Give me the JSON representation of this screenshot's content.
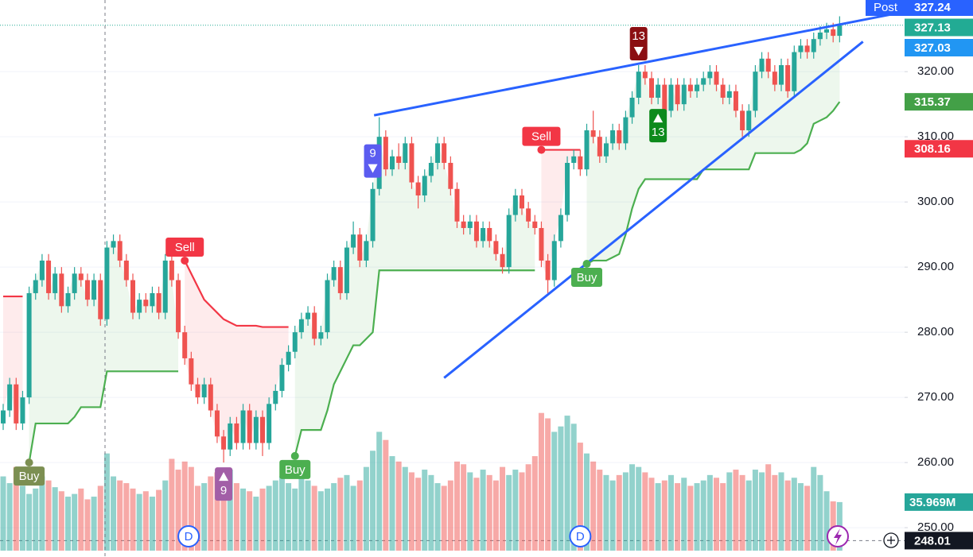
{
  "chart_data": {
    "type": "candlestick",
    "ylim": [
      245.5,
      331
    ],
    "yticks": [
      {
        "value": 250,
        "label": "250.00"
      },
      {
        "value": 260,
        "label": "260.00"
      },
      {
        "value": 270,
        "label": "270.00"
      },
      {
        "value": 280,
        "label": "280.00"
      },
      {
        "value": 290,
        "label": "290.00"
      },
      {
        "value": 300,
        "label": "300.00"
      },
      {
        "value": 310,
        "label": "310.00"
      },
      {
        "value": 320,
        "label": "320.00"
      }
    ],
    "grid": true,
    "up_color": "#26a69a",
    "down_color": "#ef5350",
    "open": [
      266,
      268,
      272,
      266,
      270,
      286,
      288,
      291,
      286,
      289,
      284,
      286,
      289,
      288,
      285,
      288,
      282,
      293,
      294,
      291,
      288,
      283,
      285,
      284,
      286,
      283,
      291,
      288,
      280,
      276,
      272,
      270,
      272,
      268,
      264,
      262,
      266,
      263,
      268,
      263,
      267,
      263,
      269,
      271,
      275,
      277,
      280,
      282,
      283,
      279,
      280,
      288,
      290,
      286,
      293,
      295,
      291,
      294,
      302,
      310,
      305,
      307,
      306,
      309,
      303,
      301,
      304,
      306,
      309,
      306,
      302,
      297,
      296,
      297,
      294,
      296,
      294,
      292,
      290,
      298,
      301,
      299,
      297,
      296,
      291,
      288,
      294,
      298,
      306,
      307,
      305,
      311,
      310,
      307,
      309,
      311,
      309,
      313,
      316,
      320,
      319,
      316,
      318,
      314,
      318,
      315,
      318,
      317,
      318,
      319,
      320,
      318,
      316,
      317,
      314,
      311,
      314,
      320,
      322,
      320,
      318,
      321,
      317,
      323,
      324,
      323,
      325,
      326,
      326.5,
      325.5
    ],
    "high": [
      269,
      273,
      273,
      271,
      287,
      289,
      292,
      292,
      290,
      290,
      287,
      290,
      290,
      289,
      289,
      289,
      294,
      295,
      295,
      292,
      289,
      286,
      286,
      287,
      287,
      292,
      292,
      289,
      281,
      277,
      273,
      273,
      273,
      269,
      265,
      267,
      267,
      269,
      269,
      268,
      268,
      270,
      272,
      276,
      278,
      281,
      283,
      284,
      284,
      281,
      289,
      291,
      291,
      294,
      297,
      296,
      295,
      303,
      313,
      311,
      308,
      309,
      310,
      310,
      304,
      305,
      307,
      310,
      310,
      307,
      303,
      298,
      298,
      298,
      297,
      297,
      295,
      293,
      299,
      302,
      302,
      300,
      298,
      297,
      292,
      295,
      299,
      307,
      308,
      308,
      312,
      314,
      311,
      310,
      312,
      312,
      314,
      317,
      321,
      321,
      320,
      319,
      319,
      319,
      319,
      319,
      319,
      319,
      320,
      321,
      321,
      319,
      318,
      318,
      315,
      315,
      321,
      323,
      323,
      321,
      322,
      322,
      324,
      325,
      325,
      326,
      327,
      327.5,
      327.5,
      328.5
    ],
    "low": [
      265,
      267,
      265,
      265,
      269,
      285,
      287,
      285,
      285,
      283,
      283,
      285,
      287,
      284,
      284,
      281,
      281,
      292,
      290,
      287,
      282,
      282,
      283,
      283,
      282,
      282,
      287,
      279,
      275,
      271,
      269,
      269,
      267,
      263,
      260,
      261,
      262,
      262,
      262,
      262,
      261,
      262,
      268,
      270,
      274,
      276,
      279,
      281,
      278,
      278,
      279,
      287,
      285,
      285,
      292,
      290,
      290,
      293,
      301,
      304,
      304,
      305,
      305,
      302,
      299,
      300,
      303,
      305,
      305,
      301,
      296,
      295,
      295,
      293,
      293,
      293,
      291,
      289,
      289,
      297,
      298,
      296,
      295,
      290,
      286,
      287,
      293,
      297,
      305,
      304,
      304,
      309,
      306,
      306,
      308,
      308,
      308,
      312,
      315,
      318,
      315,
      315,
      313,
      313,
      314,
      314,
      316,
      316,
      317,
      318,
      317,
      315,
      315,
      313,
      310,
      310,
      313,
      319,
      319,
      317,
      317,
      316,
      316,
      322,
      322,
      322,
      324,
      325,
      324.5,
      324.5
    ],
    "close": [
      268,
      272,
      266,
      270,
      286,
      288,
      291,
      286,
      289,
      284,
      286,
      289,
      288,
      285,
      288,
      282,
      293,
      294,
      291,
      288,
      283,
      285,
      284,
      286,
      283,
      291,
      288,
      280,
      276,
      272,
      270,
      272,
      268,
      264,
      262,
      266,
      263,
      268,
      263,
      267,
      263,
      269,
      271,
      275,
      277,
      280,
      282,
      283,
      279,
      280,
      288,
      290,
      286,
      293,
      295,
      291,
      294,
      302,
      310,
      305,
      307,
      306,
      309,
      303,
      301,
      304,
      306,
      309,
      306,
      302,
      297,
      296,
      297,
      294,
      296,
      294,
      292,
      290,
      298,
      301,
      299,
      297,
      296,
      291,
      288,
      294,
      298,
      306,
      307,
      305,
      311,
      310,
      307,
      309,
      311,
      309,
      313,
      316,
      320,
      319,
      316,
      318,
      314,
      318,
      315,
      318,
      317,
      318,
      319,
      320,
      318,
      316,
      317,
      314,
      311,
      314,
      320,
      322,
      320,
      318,
      321,
      317,
      323,
      324,
      323,
      325,
      326,
      326.5,
      325.5,
      327.13
    ],
    "volume_ylim": [
      0,
      103
    ],
    "volume": [
      55,
      50,
      62,
      48,
      42,
      46,
      55,
      52,
      47,
      44,
      40,
      42,
      46,
      38,
      40,
      48,
      72,
      55,
      52,
      50,
      46,
      42,
      44,
      40,
      45,
      52,
      68,
      60,
      66,
      62,
      48,
      50,
      55,
      58,
      56,
      60,
      50,
      46,
      44,
      40,
      46,
      48,
      52,
      55,
      50,
      46,
      58,
      52,
      48,
      44,
      46,
      50,
      54,
      56,
      48,
      52,
      62,
      74,
      88,
      82,
      70,
      66,
      62,
      58,
      54,
      60,
      56,
      50,
      48,
      52,
      66,
      64,
      58,
      54,
      60,
      56,
      52,
      62,
      56,
      60,
      58,
      64,
      70,
      102,
      98,
      88,
      92,
      100,
      94,
      80,
      72,
      66,
      60,
      56,
      52,
      56,
      58,
      64,
      62,
      58,
      54,
      50,
      52,
      56,
      50,
      54,
      48,
      50,
      52,
      56,
      54,
      50,
      58,
      60,
      56,
      52,
      60,
      58,
      64,
      56,
      58,
      52,
      54,
      50,
      48,
      62,
      56,
      44,
      36.5,
      35.969
    ],
    "volume_tag": {
      "label": "35.969M",
      "value": 35.969,
      "color": "#26a69a"
    },
    "supertrend_down": [
      285.5,
      285.5,
      285.5,
      285.5,
      null,
      null,
      null,
      null,
      null,
      null,
      null,
      null,
      null,
      null,
      null,
      null,
      null,
      null,
      null,
      null,
      null,
      null,
      null,
      null,
      null,
      null,
      null,
      null,
      291,
      289,
      287,
      285,
      284,
      283,
      282,
      281.5,
      281,
      281,
      281,
      281,
      280.8,
      280.8,
      280.8,
      280.8,
      280.8,
      null,
      null,
      null,
      null,
      null,
      null,
      null,
      null,
      null,
      null,
      null,
      null,
      null,
      null,
      null,
      null,
      null,
      null,
      null,
      null,
      null,
      null,
      null,
      null,
      null,
      null,
      null,
      null,
      null,
      null,
      null,
      null,
      null,
      null,
      null,
      null,
      null,
      null,
      308,
      308,
      308,
      308,
      308,
      308,
      308,
      null,
      null,
      null,
      null,
      null,
      null,
      null,
      null,
      null,
      null,
      null,
      null,
      null,
      null,
      null,
      null,
      null,
      null,
      null,
      null,
      null,
      null,
      null,
      null,
      null,
      null,
      null,
      null,
      null,
      null,
      null,
      null,
      null,
      null,
      null,
      null,
      null,
      null,
      null,
      null
    ],
    "supertrend_up": [
      null,
      null,
      null,
      null,
      260,
      266,
      266,
      266,
      266,
      266,
      266,
      267,
      268.5,
      268.5,
      268.5,
      268.5,
      274,
      274,
      274,
      274,
      274,
      274,
      274,
      274,
      274,
      274,
      274,
      274,
      null,
      null,
      null,
      null,
      null,
      null,
      null,
      null,
      null,
      null,
      null,
      null,
      null,
      null,
      null,
      null,
      null,
      261,
      265,
      265,
      265,
      265,
      268,
      272,
      274,
      276,
      278,
      278,
      279,
      280,
      289.5,
      289.5,
      289.5,
      289.5,
      289.5,
      289.5,
      289.5,
      289.5,
      289.5,
      289.5,
      289.5,
      289.5,
      289.5,
      289.5,
      289.5,
      289.5,
      289.5,
      289.5,
      289.5,
      289.5,
      289.5,
      289.5,
      289.5,
      289.5,
      289.5,
      null,
      null,
      null,
      null,
      null,
      null,
      null,
      290.5,
      291,
      291,
      291,
      291.5,
      292,
      295,
      299,
      302,
      303.5,
      303.5,
      303.5,
      303.5,
      303.5,
      303.5,
      303.5,
      303.5,
      303.5,
      305,
      305,
      305,
      305,
      305,
      305,
      305,
      305,
      307.5,
      307.5,
      307.5,
      307.5,
      307.5,
      307.5,
      307.5,
      308,
      309,
      312,
      312.5,
      313,
      314,
      315.37
    ],
    "supertrend_up_color": "#4caf50",
    "supertrend_down_color": "#f23645",
    "trendline_color": "#2962ff",
    "trendlines": [
      {
        "x": [
          57.2,
          137
        ],
        "y": [
          313.3,
          328.8
        ]
      },
      {
        "x": [
          68,
          132.6
        ],
        "y": [
          273,
          324.6
        ]
      }
    ],
    "signals": [
      {
        "text": "Buy",
        "index": 4,
        "price": 260,
        "side": "below",
        "color": "#7c8f52"
      },
      {
        "text": "Sell",
        "index": 28,
        "price": 291,
        "side": "above",
        "color": "#f23645"
      },
      {
        "text": "Buy",
        "index": 45,
        "price": 261,
        "side": "below",
        "color": "#4caf50"
      },
      {
        "text": "Sell",
        "index": 83,
        "price": 308,
        "side": "above",
        "color": "#f23645"
      },
      {
        "text": "Buy",
        "index": 90,
        "price": 290.5,
        "side": "below",
        "color": "#4caf50"
      }
    ],
    "counts": [
      {
        "text": "9",
        "index": 34,
        "price": 260,
        "side": "below",
        "color": "#a25ea7"
      },
      {
        "text": "9",
        "index": 57,
        "price": 303,
        "side": "above",
        "color": "#5b5cf0"
      },
      {
        "text": "13",
        "index": 98,
        "price": 321,
        "side": "above",
        "color": "#8b0f12"
      },
      {
        "text": "13",
        "index": 101,
        "price": 315,
        "side": "below",
        "color": "#0d8a1c"
      }
    ],
    "markers": [
      {
        "text": "D",
        "index": 28.6
      },
      {
        "text": "D",
        "index": 89
      }
    ],
    "price_tags": [
      {
        "label": "327.24",
        "value": 327.24,
        "color": "#2962ff",
        "prefix": "Post"
      },
      {
        "label": "327.13",
        "value": 327.13,
        "color": "#22ab94"
      },
      {
        "label": "327.03",
        "value": 327.03,
        "color": "#2196f3"
      },
      {
        "label": "315.37",
        "value": 315.37,
        "color": "#43a047"
      },
      {
        "label": "308.16",
        "value": 308.16,
        "color": "#f23645"
      }
    ],
    "crosshair": {
      "label": "248.01",
      "value": 248.01
    }
  }
}
